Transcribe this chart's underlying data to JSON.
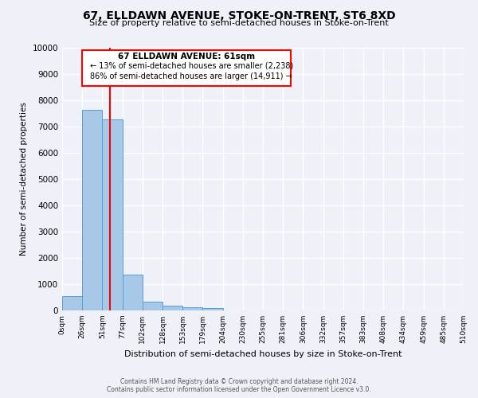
{
  "title": "67, ELLDAWN AVENUE, STOKE-ON-TRENT, ST6 8XD",
  "subtitle": "Size of property relative to semi-detached houses in Stoke-on-Trent",
  "xlabel": "Distribution of semi-detached houses by size in Stoke-on-Trent",
  "ylabel": "Number of semi-detached properties",
  "bin_labels": [
    "0sqm",
    "26sqm",
    "51sqm",
    "77sqm",
    "102sqm",
    "128sqm",
    "153sqm",
    "179sqm",
    "204sqm",
    "230sqm",
    "255sqm",
    "281sqm",
    "306sqm",
    "332sqm",
    "357sqm",
    "383sqm",
    "408sqm",
    "434sqm",
    "459sqm",
    "485sqm",
    "510sqm"
  ],
  "bar_values": [
    550,
    7650,
    7280,
    1370,
    320,
    175,
    125,
    100,
    0,
    0,
    0,
    0,
    0,
    0,
    0,
    0,
    0,
    0,
    0,
    0
  ],
  "bar_color": "#a8c8e8",
  "bar_edge_color": "#5b9bd5",
  "property_line_color": "red",
  "annotation_title": "67 ELLDAWN AVENUE: 61sqm",
  "annotation_line1": "← 13% of semi-detached houses are smaller (2,238)",
  "annotation_line2": "86% of semi-detached houses are larger (14,911) →",
  "annotation_box_color": "red",
  "ylim": [
    0,
    10000
  ],
  "yticks": [
    0,
    1000,
    2000,
    3000,
    4000,
    5000,
    6000,
    7000,
    8000,
    9000,
    10000
  ],
  "background_color": "#eef2f8",
  "grid_color": "#ffffff",
  "footer1": "Contains HM Land Registry data © Crown copyright and database right 2024.",
  "footer2": "Contains public sector information licensed under the Open Government Licence v3.0.",
  "label_vals": [
    0,
    26,
    51,
    77,
    102,
    128,
    153,
    179,
    204,
    230,
    255,
    281,
    306,
    332,
    357,
    383,
    408,
    434,
    459,
    485,
    510
  ]
}
